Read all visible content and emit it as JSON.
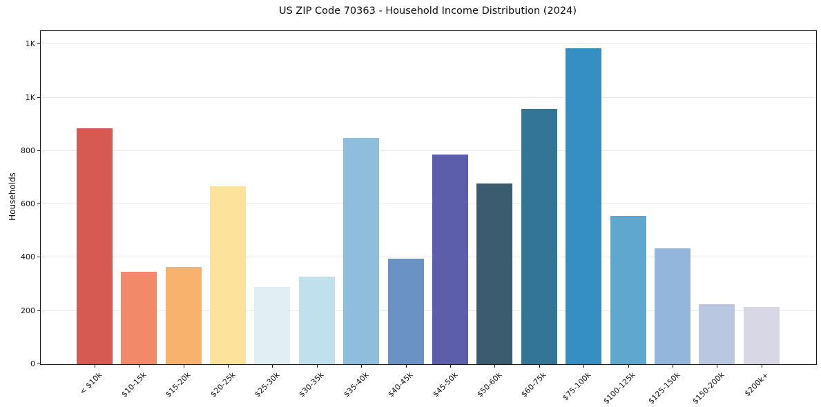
{
  "title": "US ZIP Code 70363 - Household Income Distribution (2024)",
  "chart_data": {
    "type": "bar",
    "title": "US ZIP Code 70363 - Household Income Distribution (2024)",
    "xlabel": "",
    "ylabel": "Households",
    "categories": [
      "< $10k",
      "$10-15k",
      "$15-20k",
      "$20-25k",
      "$25-30k",
      "$30-35k",
      "$35-40k",
      "$40-45k",
      "$45-50k",
      "$50-60k",
      "$60-75k",
      "$75-100k",
      "$100-125k",
      "$125-150k",
      "$150-200k",
      "$200k+"
    ],
    "values": [
      885,
      347,
      364,
      668,
      289,
      330,
      848,
      396,
      788,
      677,
      957,
      1186,
      557,
      434,
      225,
      214
    ],
    "bar_colors": [
      "#d65a52",
      "#f28a6a",
      "#f9b26e",
      "#fce29b",
      "#e1eff2",
      "#bfe0ec",
      "#8fbddc",
      "#6a92c5",
      "#5c5dab",
      "#3a5c6e",
      "#337596",
      "#368fc3",
      "#5fa7ce",
      "#93b7da",
      "#bac7e0",
      "#d8d7e5"
    ],
    "ylim": [
      0,
      1250
    ],
    "yticks": [
      {
        "value": 0,
        "label": "0"
      },
      {
        "value": 200,
        "label": "200"
      },
      {
        "value": 400,
        "label": "400"
      },
      {
        "value": 600,
        "label": "600"
      },
      {
        "value": 800,
        "label": "800"
      },
      {
        "value": 1000,
        "label": "1K"
      },
      {
        "value": 1200,
        "label": "1K"
      }
    ],
    "grid": "horizontal",
    "legend": "none",
    "background_color": "#ffffff",
    "spine_color": "#1a1a1a",
    "grid_color": "#ebebee"
  }
}
